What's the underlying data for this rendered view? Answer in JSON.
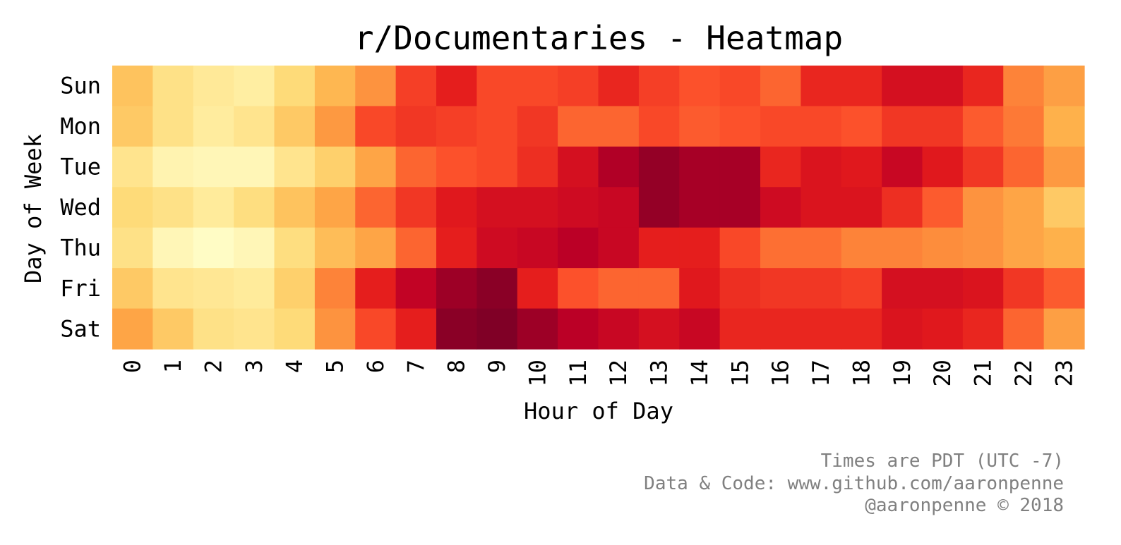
{
  "chart_data": {
    "type": "heatmap",
    "title": "r/Documentaries - Heatmap",
    "xlabel": "Hour of Day",
    "ylabel": "Day of Week",
    "x_categories": [
      "0",
      "1",
      "2",
      "3",
      "4",
      "5",
      "6",
      "7",
      "8",
      "9",
      "10",
      "11",
      "12",
      "13",
      "14",
      "15",
      "16",
      "17",
      "18",
      "19",
      "20",
      "21",
      "22",
      "23"
    ],
    "y_categories": [
      "Sun",
      "Mon",
      "Tue",
      "Wed",
      "Thu",
      "Fri",
      "Sat"
    ],
    "colormap": "YlOrRd",
    "color_stops": [
      "#ffffcc",
      "#ffeda0",
      "#fed976",
      "#feb24c",
      "#fd8d3c",
      "#fc4e2a",
      "#e31a1c",
      "#bd0026",
      "#800026"
    ],
    "value_range": [
      0,
      1
    ],
    "values": [
      [
        0.32,
        0.2,
        0.15,
        0.12,
        0.24,
        0.36,
        0.48,
        0.66,
        0.74,
        0.64,
        0.64,
        0.66,
        0.72,
        0.66,
        0.62,
        0.64,
        0.58,
        0.72,
        0.72,
        0.8,
        0.8,
        0.72,
        0.52,
        0.44
      ],
      [
        0.3,
        0.2,
        0.13,
        0.18,
        0.3,
        0.46,
        0.64,
        0.68,
        0.66,
        0.64,
        0.68,
        0.58,
        0.58,
        0.64,
        0.6,
        0.62,
        0.64,
        0.64,
        0.62,
        0.68,
        0.68,
        0.6,
        0.54,
        0.38
      ],
      [
        0.18,
        0.08,
        0.06,
        0.06,
        0.18,
        0.28,
        0.42,
        0.58,
        0.62,
        0.64,
        0.7,
        0.8,
        0.9,
        0.96,
        0.92,
        0.92,
        0.72,
        0.78,
        0.76,
        0.84,
        0.76,
        0.68,
        0.58,
        0.46
      ],
      [
        0.24,
        0.2,
        0.14,
        0.22,
        0.32,
        0.42,
        0.58,
        0.68,
        0.76,
        0.8,
        0.8,
        0.82,
        0.84,
        0.96,
        0.92,
        0.92,
        0.82,
        0.78,
        0.78,
        0.7,
        0.6,
        0.48,
        0.42,
        0.3
      ],
      [
        0.2,
        0.06,
        0.02,
        0.06,
        0.22,
        0.34,
        0.42,
        0.58,
        0.74,
        0.82,
        0.84,
        0.88,
        0.84,
        0.74,
        0.74,
        0.64,
        0.56,
        0.56,
        0.52,
        0.52,
        0.5,
        0.48,
        0.42,
        0.38
      ],
      [
        0.3,
        0.18,
        0.16,
        0.14,
        0.28,
        0.52,
        0.74,
        0.86,
        0.94,
        0.98,
        0.74,
        0.62,
        0.58,
        0.58,
        0.76,
        0.7,
        0.68,
        0.68,
        0.66,
        0.8,
        0.8,
        0.78,
        0.68,
        0.6
      ],
      [
        0.42,
        0.3,
        0.2,
        0.18,
        0.24,
        0.48,
        0.64,
        0.74,
        0.98,
        1.0,
        0.94,
        0.88,
        0.84,
        0.8,
        0.84,
        0.72,
        0.72,
        0.72,
        0.72,
        0.78,
        0.76,
        0.72,
        0.58,
        0.44
      ]
    ]
  },
  "footer": {
    "line1": "Times are PDT (UTC -7)",
    "line2": "Data & Code: www.github.com/aaronpenne",
    "line3": "@aaronpenne © 2018",
    "color": "#808080"
  }
}
